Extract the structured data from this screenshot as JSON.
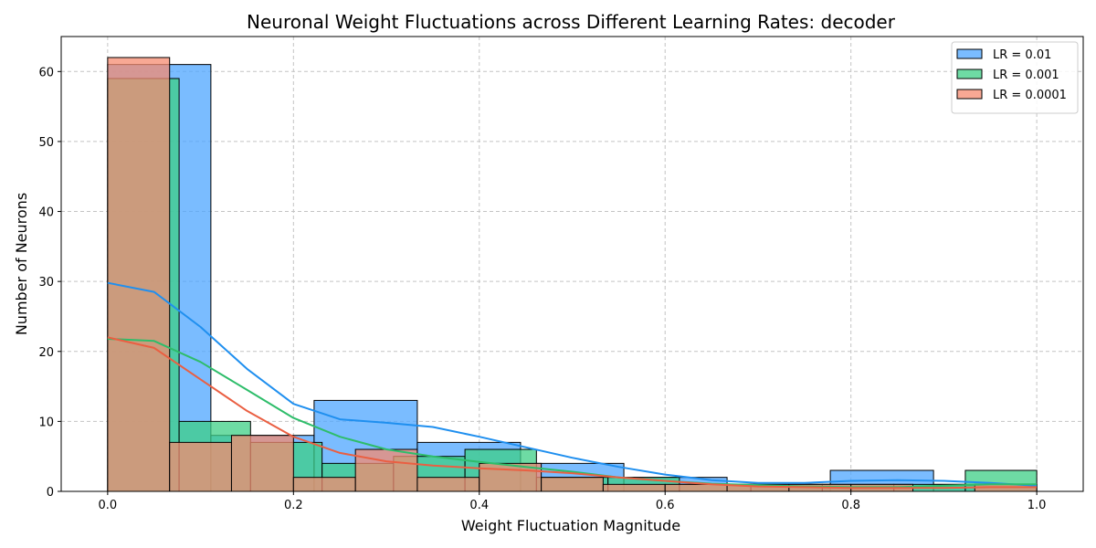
{
  "chart_data": {
    "type": "histogram",
    "title": "Neuronal Weight Fluctuations across Different Learning Rates: decoder",
    "xlabel": "Weight Fluctuation Magnitude",
    "ylabel": "Number of Neurons",
    "xlim": [
      -0.05,
      1.05
    ],
    "ylim": [
      0,
      65
    ],
    "xticks": [
      0.0,
      0.2,
      0.4,
      0.6,
      0.8,
      1.0
    ],
    "xtick_labels": [
      "0.0",
      "0.2",
      "0.4",
      "0.6",
      "0.8",
      "1.0"
    ],
    "yticks": [
      0,
      10,
      20,
      30,
      40,
      50,
      60
    ],
    "ytick_labels": [
      "0",
      "10",
      "20",
      "30",
      "40",
      "50",
      "60"
    ],
    "grid": true,
    "legend_position": "top-right",
    "series": [
      {
        "name": "LR = 0.01",
        "color": "#4da6ff",
        "line_color": "#1f8fef",
        "bin_edges": [
          0.0,
          0.1111,
          0.2222,
          0.3333,
          0.4444,
          0.5556,
          0.6667,
          0.7778,
          0.8889,
          1.0
        ],
        "counts": [
          61,
          8,
          13,
          7,
          4,
          2,
          1,
          3,
          1
        ],
        "kde": [
          [
            0.0,
            29.8
          ],
          [
            0.05,
            28.5
          ],
          [
            0.1,
            23.5
          ],
          [
            0.15,
            17.5
          ],
          [
            0.2,
            12.5
          ],
          [
            0.25,
            10.3
          ],
          [
            0.3,
            9.8
          ],
          [
            0.35,
            9.2
          ],
          [
            0.4,
            7.8
          ],
          [
            0.45,
            6.3
          ],
          [
            0.5,
            4.8
          ],
          [
            0.55,
            3.5
          ],
          [
            0.6,
            2.4
          ],
          [
            0.65,
            1.6
          ],
          [
            0.7,
            1.2
          ],
          [
            0.75,
            1.2
          ],
          [
            0.8,
            1.5
          ],
          [
            0.85,
            1.6
          ],
          [
            0.9,
            1.5
          ],
          [
            0.95,
            1.2
          ],
          [
            1.0,
            0.8
          ]
        ]
      },
      {
        "name": "LR = 0.001",
        "color": "#3dcf85",
        "line_color": "#2ebd6a",
        "bin_edges": [
          0.0,
          0.0769,
          0.1538,
          0.2308,
          0.3077,
          0.3846,
          0.4615,
          0.5385,
          0.6154,
          0.6923,
          0.7692,
          0.8462,
          0.9231,
          1.0
        ],
        "counts": [
          59,
          10,
          7,
          4,
          5,
          6,
          2,
          2,
          1,
          1,
          1,
          1,
          3
        ],
        "kde": [
          [
            0.0,
            21.8
          ],
          [
            0.05,
            21.5
          ],
          [
            0.1,
            18.5
          ],
          [
            0.15,
            14.5
          ],
          [
            0.2,
            10.5
          ],
          [
            0.25,
            7.8
          ],
          [
            0.3,
            6.0
          ],
          [
            0.35,
            5.0
          ],
          [
            0.4,
            4.2
          ],
          [
            0.45,
            3.5
          ],
          [
            0.5,
            2.8
          ],
          [
            0.55,
            2.0
          ],
          [
            0.6,
            1.5
          ],
          [
            0.65,
            1.1
          ],
          [
            0.7,
            0.9
          ],
          [
            0.75,
            0.7
          ],
          [
            0.8,
            0.6
          ],
          [
            0.85,
            0.6
          ],
          [
            0.9,
            0.8
          ],
          [
            0.95,
            1.0
          ],
          [
            1.0,
            1.0
          ]
        ]
      },
      {
        "name": "LR = 0.0001",
        "color": "#f58b70",
        "line_color": "#ea5f42",
        "bin_edges": [
          0.0,
          0.0667,
          0.1333,
          0.2,
          0.2667,
          0.3333,
          0.4,
          0.4667,
          0.5333,
          0.6,
          0.6667,
          0.7333,
          0.8,
          0.8667,
          0.9333,
          1.0
        ],
        "counts": [
          62,
          7,
          8,
          2,
          6,
          2,
          4,
          2,
          1,
          1,
          1,
          1,
          1,
          0,
          1
        ],
        "kde": [
          [
            0.0,
            22.0
          ],
          [
            0.05,
            20.5
          ],
          [
            0.1,
            16.0
          ],
          [
            0.15,
            11.5
          ],
          [
            0.2,
            7.8
          ],
          [
            0.25,
            5.5
          ],
          [
            0.3,
            4.3
          ],
          [
            0.35,
            3.7
          ],
          [
            0.4,
            3.3
          ],
          [
            0.45,
            3.0
          ],
          [
            0.5,
            2.6
          ],
          [
            0.55,
            2.0
          ],
          [
            0.6,
            1.5
          ],
          [
            0.65,
            1.0
          ],
          [
            0.7,
            0.7
          ],
          [
            0.75,
            0.6
          ],
          [
            0.8,
            0.5
          ],
          [
            0.85,
            0.5
          ],
          [
            0.9,
            0.5
          ],
          [
            0.95,
            0.6
          ],
          [
            1.0,
            0.6
          ]
        ]
      }
    ]
  }
}
